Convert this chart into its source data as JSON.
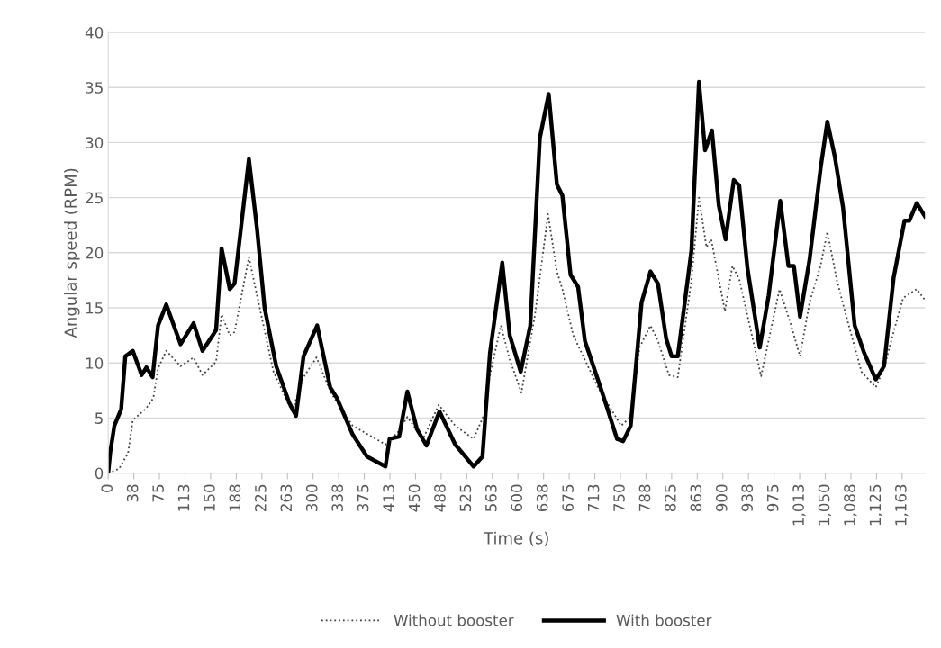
{
  "chart_data": {
    "type": "line",
    "xlabel": "Time (s)",
    "ylabel": "Angular speed (RPM)",
    "xlim": [
      0,
      1196
    ],
    "ylim": [
      0,
      40
    ],
    "yticks": [
      0,
      5,
      10,
      15,
      20,
      25,
      30,
      35,
      40
    ],
    "xticks": [
      0,
      {
        "value": 37.5,
        "label": "38"
      },
      75,
      {
        "value": 112.5,
        "label": "113"
      },
      150,
      {
        "value": 187.5,
        "label": "188"
      },
      225,
      {
        "value": 262.5,
        "label": "263"
      },
      300,
      {
        "value": 337.5,
        "label": "338"
      },
      375,
      {
        "value": 412.5,
        "label": "413"
      },
      450,
      {
        "value": 487.5,
        "label": "488"
      },
      525,
      {
        "value": 562.5,
        "label": "563"
      },
      600,
      {
        "value": 637.5,
        "label": "638"
      },
      675,
      {
        "value": 712.5,
        "label": "713"
      },
      750,
      {
        "value": 787.5,
        "label": "788"
      },
      825,
      {
        "value": 862.5,
        "label": "863"
      },
      900,
      {
        "value": 937.5,
        "label": "938"
      },
      975,
      {
        "value": 1012.5,
        "label": "1,013"
      },
      {
        "value": 1050,
        "label": "1,050"
      },
      {
        "value": 1087.5,
        "label": "1,088"
      },
      {
        "value": 1125,
        "label": "1,125"
      },
      {
        "value": 1162.5,
        "label": "1,163"
      }
    ],
    "grid": "y",
    "legend": "bottom",
    "marker": "none",
    "series": [
      {
        "name": "Without booster",
        "color": "#404040",
        "line_style": "dotted",
        "x": [
          0,
          16,
          29,
          36,
          56,
          66,
          73,
          85,
          106,
          125,
          138,
          158,
          166,
          178,
          185,
          206,
          218,
          242,
          269,
          286,
          305,
          326,
          358,
          406,
          424,
          438,
          461,
          484,
          508,
          535,
          551,
          559,
          575,
          588,
          605,
          625,
          644,
          657,
          665,
          681,
          717,
          751,
          765,
          778,
          794,
          805,
          821,
          834,
          854,
          865,
          876,
          883,
          903,
          914,
          924,
          956,
          983,
          1000,
          1013,
          1027,
          1043,
          1053,
          1067,
          1080,
          1103,
          1124,
          1136,
          1150,
          1164,
          1184,
          1196
        ],
        "values": [
          0,
          0.4,
          1.8,
          4.8,
          5.9,
          6.8,
          9.5,
          11.1,
          9.7,
          10.5,
          8.9,
          10.1,
          14.4,
          12.5,
          12.8,
          19.6,
          16.1,
          9.2,
          5.6,
          8.7,
          10.5,
          7.3,
          4.3,
          2.6,
          3.7,
          5.1,
          3.1,
          6.2,
          4.3,
          3.1,
          5.4,
          8.9,
          13.4,
          10.3,
          7.3,
          14.4,
          23.5,
          18.3,
          16.7,
          12.5,
          7.8,
          4.3,
          5.1,
          11.4,
          13.4,
          12.0,
          8.9,
          8.7,
          17.5,
          25.0,
          20.5,
          21.2,
          14.7,
          18.8,
          17.6,
          8.8,
          16.7,
          13.4,
          10.6,
          15.5,
          18.8,
          21.9,
          17.5,
          14.4,
          9.2,
          7.8,
          9.5,
          12.8,
          15.9,
          16.7,
          15.7
        ]
      },
      {
        "name": "With booster",
        "color": "#000000",
        "line_style": "solid",
        "x": [
          0,
          3,
          9,
          19,
          25,
          36,
          49,
          56,
          65,
          73,
          85,
          96,
          106,
          125,
          138,
          153,
          158,
          166,
          178,
          185,
          206,
          218,
          229,
          246,
          265,
          275,
          286,
          306,
          325,
          335,
          358,
          379,
          406,
          412,
          426,
          438,
          452,
          466,
          485,
          508,
          535,
          548,
          559,
          577,
          588,
          604,
          618,
          632,
          645,
          657,
          665,
          677,
          688,
          698,
          725,
          745,
          754,
          765,
          781,
          794,
          805,
          817,
          825,
          834,
          854,
          865,
          874,
          884,
          894,
          904,
          916,
          924,
          936,
          954,
          967,
          984,
          996,
          1004,
          1013,
          1027,
          1043,
          1053,
          1064,
          1076,
          1093,
          1107,
          1124,
          1136,
          1150,
          1166,
          1173,
          1184,
          1196
        ],
        "values": [
          0,
          1.9,
          4.3,
          5.8,
          10.6,
          11.1,
          8.9,
          9.6,
          8.7,
          13.4,
          15.3,
          13.4,
          11.7,
          13.6,
          11.1,
          12.5,
          13.0,
          20.4,
          16.7,
          17.2,
          28.5,
          22.1,
          15.0,
          9.7,
          6.4,
          5.2,
          10.6,
          13.4,
          7.8,
          6.8,
          3.5,
          1.5,
          0.6,
          3.1,
          3.3,
          7.4,
          4.0,
          2.5,
          5.6,
          2.6,
          0.6,
          1.5,
          10.9,
          19.1,
          12.5,
          9.2,
          13.4,
          30.4,
          34.4,
          26.2,
          25.2,
          18.0,
          16.9,
          12.0,
          7.0,
          3.1,
          2.9,
          4.3,
          15.5,
          18.3,
          17.2,
          12.2,
          10.6,
          10.6,
          20.2,
          35.5,
          29.3,
          31.1,
          24.3,
          21.2,
          26.6,
          26.1,
          18.6,
          11.4,
          16.1,
          24.7,
          18.8,
          18.8,
          14.2,
          19.4,
          27.6,
          31.9,
          28.7,
          24.1,
          13.4,
          10.9,
          8.5,
          9.7,
          17.7,
          22.9,
          22.9,
          24.5,
          23.3
        ]
      }
    ]
  }
}
